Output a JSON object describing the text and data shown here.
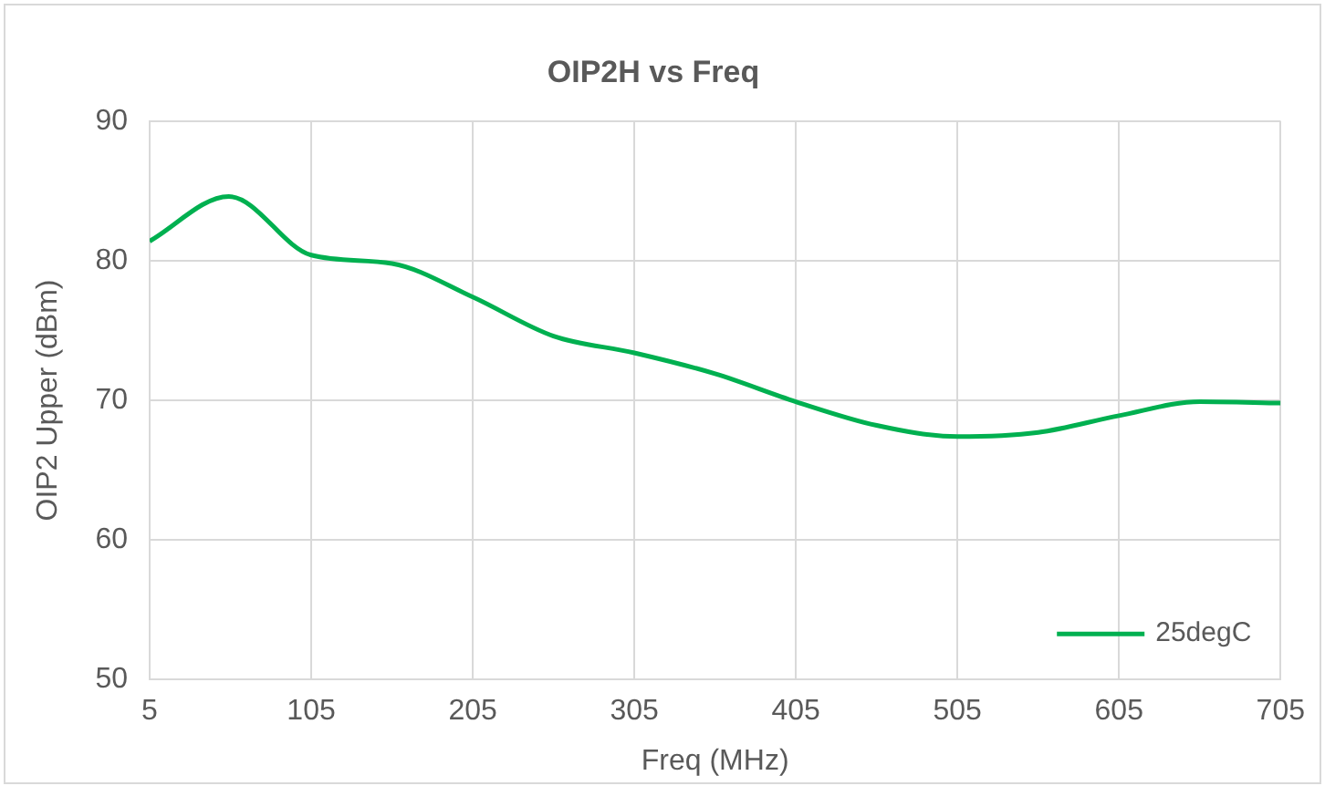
{
  "chart_data": {
    "type": "line",
    "title": "OIP2H vs Freq",
    "xlabel": "Freq (MHz)",
    "ylabel": "OIP2 Upper (dBm)",
    "x": [
      5,
      54,
      105,
      155,
      205,
      255,
      305,
      355,
      405,
      455,
      505,
      555,
      605,
      655,
      705
    ],
    "series": [
      {
        "name": "25degC",
        "color": "#00b050",
        "values": [
          81.4,
          84.6,
          80.4,
          79.8,
          77.4,
          74.6,
          73.4,
          71.9,
          69.9,
          68.2,
          67.4,
          67.7,
          68.9,
          69.9,
          69.8
        ]
      }
    ],
    "xlim": [
      5,
      705
    ],
    "xticks": [
      5,
      105,
      205,
      305,
      405,
      505,
      605,
      705
    ],
    "ylim": [
      50,
      90
    ],
    "yticks": [
      50,
      60,
      70,
      80,
      90
    ],
    "grid": true,
    "legend": "bottom right",
    "marker": "none",
    "line_style": "solid"
  }
}
